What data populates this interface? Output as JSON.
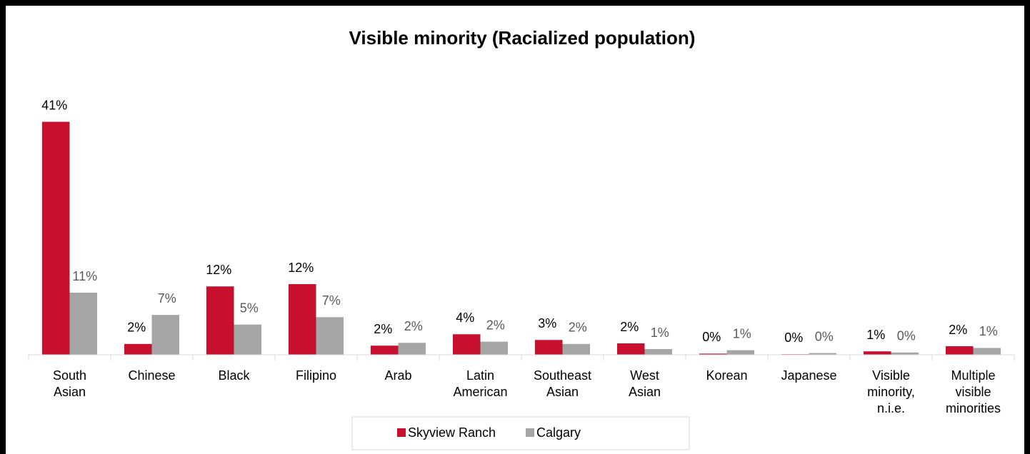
{
  "chart_data": {
    "type": "bar",
    "title": "Visible minority (Racialized population)",
    "categories": [
      "South Asian",
      "Chinese",
      "Black",
      "Filipino",
      "Arab",
      "Latin American",
      "Southeast Asian",
      "West Asian",
      "Korean",
      "Japanese",
      "Visible minority, n.i.e.",
      "Multiple visible minorities"
    ],
    "series": [
      {
        "name": "Skyview Ranch",
        "color": "#c8102e",
        "values": [
          40.9,
          1.9,
          12.0,
          12.4,
          1.6,
          3.6,
          2.6,
          2.0,
          0.2,
          0.1,
          0.6,
          1.5
        ],
        "value_labels": [
          "41%",
          "2%",
          "12%",
          "12%",
          "2%",
          "4%",
          "3%",
          "2%",
          "0%",
          "0%",
          "1%",
          "2%"
        ]
      },
      {
        "name": "Calgary",
        "color": "#a5a5a5",
        "values": [
          10.9,
          7.0,
          5.3,
          6.6,
          2.1,
          2.3,
          1.9,
          1.0,
          0.8,
          0.3,
          0.4,
          1.2
        ],
        "value_labels": [
          "11%",
          "7%",
          "5%",
          "7%",
          "2%",
          "2%",
          "2%",
          "1%",
          "1%",
          "0%",
          "0%",
          "1%"
        ]
      }
    ],
    "legend": "bottom"
  }
}
